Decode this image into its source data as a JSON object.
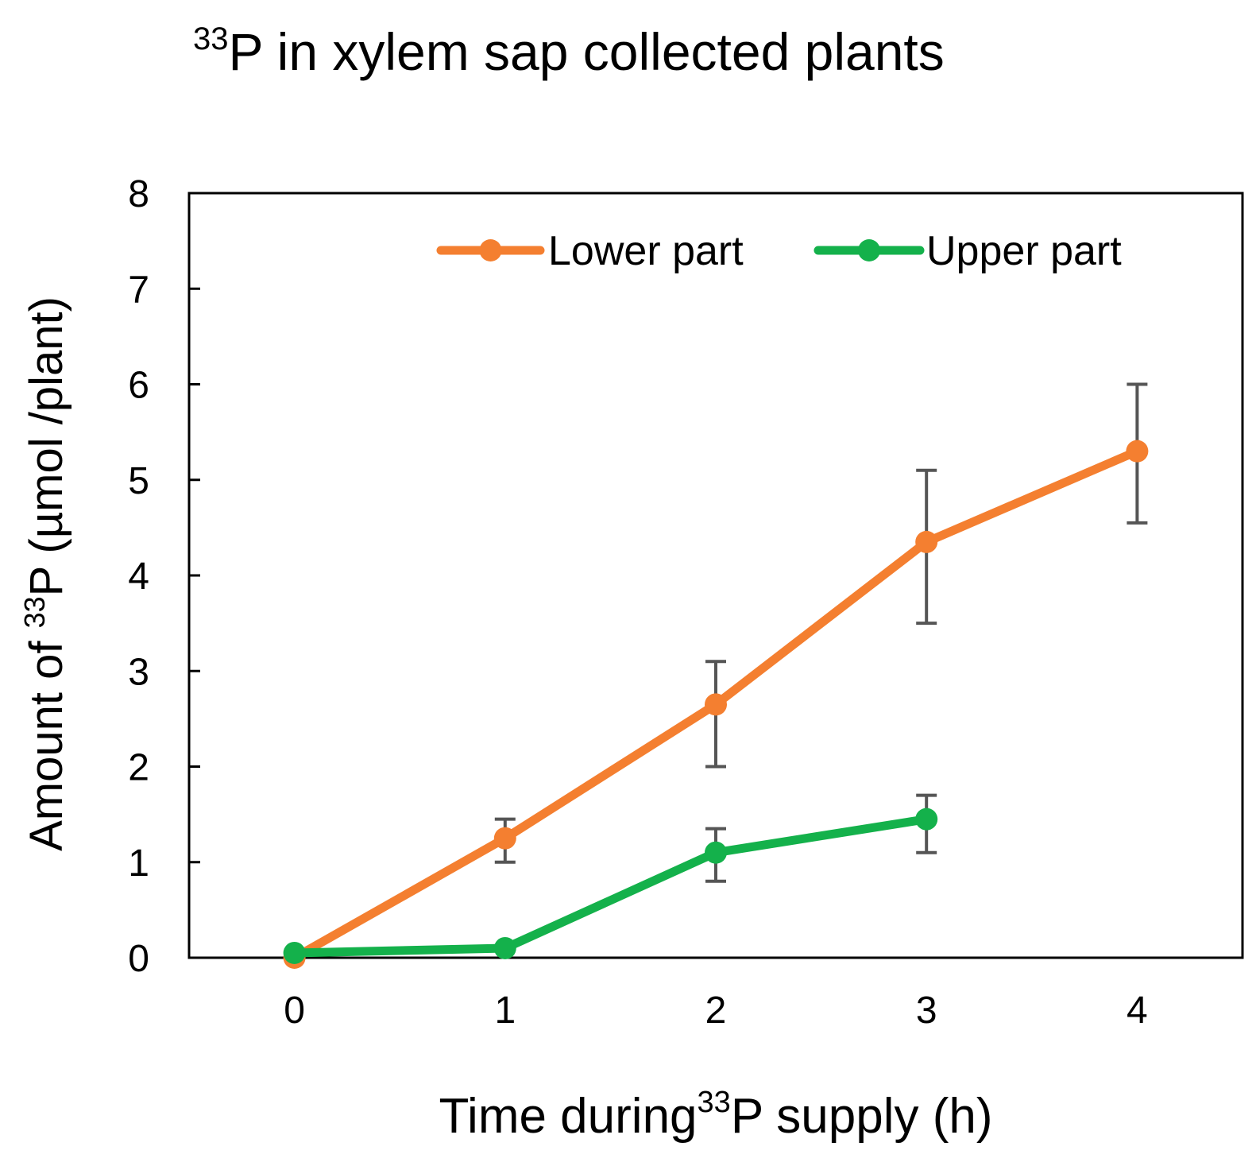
{
  "chart_data": {
    "type": "line",
    "title": {
      "sup": "33",
      "main": "P in xylem sap collected plants"
    },
    "xlabel": {
      "pre": "Time during",
      "sup": "33",
      "post": "P supply (h)"
    },
    "ylabel": {
      "pre": "Amount of ",
      "sup": "33",
      "post": "P (µmol /plant)"
    },
    "x": [
      0,
      1,
      2,
      3,
      4
    ],
    "xlim": [
      -0.5,
      4.5
    ],
    "ylim": [
      0,
      8
    ],
    "yticks": [
      0,
      1,
      2,
      3,
      4,
      5,
      6,
      7,
      8
    ],
    "xticks": [
      0,
      1,
      2,
      3,
      4
    ],
    "legend_position": "top-right",
    "series": [
      {
        "name": "Lower part",
        "color": "#f47f30",
        "x": [
          0,
          1,
          2,
          3,
          4
        ],
        "values": [
          0.0,
          1.25,
          2.65,
          4.35,
          5.3
        ],
        "err_low": [
          null,
          1.0,
          2.0,
          3.5,
          4.55
        ],
        "err_high": [
          null,
          1.45,
          3.1,
          5.1,
          6.0
        ]
      },
      {
        "name": "Upper part",
        "color": "#14b14b",
        "x": [
          0,
          1,
          2,
          3
        ],
        "values": [
          0.05,
          0.1,
          1.1,
          1.45
        ],
        "err_low": [
          null,
          null,
          0.8,
          1.1
        ],
        "err_high": [
          null,
          null,
          1.35,
          1.7
        ]
      }
    ],
    "error_bar_color": "#555555"
  }
}
